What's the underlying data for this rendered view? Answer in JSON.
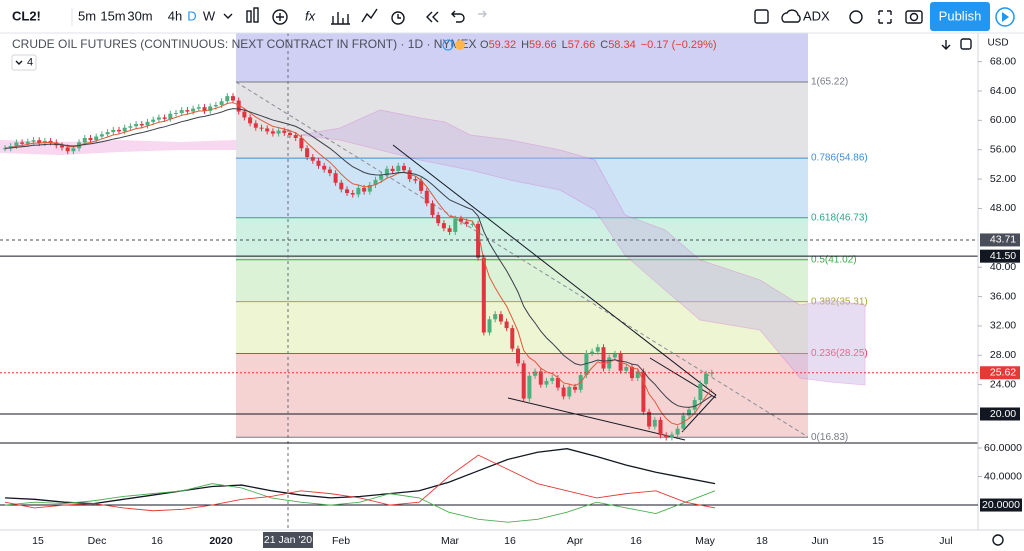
{
  "toolbar": {
    "symbol": "CL2!",
    "intervals": [
      "5m",
      "15m",
      "30m",
      "4h",
      "D",
      "W"
    ],
    "indicator": "ADX",
    "publish": "Publish"
  },
  "legend": {
    "title": "CRUDE OIL FUTURES (CONTINUOUS: NEXT CONTRACT IN FRONT) · 1D · NYMEX",
    "ohlc": [
      {
        "label": "O",
        "value": 59.32
      },
      {
        "label": "H",
        "value": 59.66
      },
      {
        "label": "L",
        "value": 57.66
      },
      {
        "label": "C",
        "value": 58.34
      }
    ],
    "change": "−0.17 (−0.29%)",
    "indicator_count": "4"
  },
  "currency": "USD",
  "price_axis": {
    "range": [
      16.05,
      71.9
    ],
    "ticks": [
      {
        "value": 68,
        "label": "68.00"
      },
      {
        "value": 64,
        "label": "64.00"
      },
      {
        "value": 60,
        "label": "60.00"
      },
      {
        "value": 56,
        "label": "56.00"
      },
      {
        "value": 52,
        "label": "52.00"
      },
      {
        "value": 48,
        "label": "48.00"
      },
      {
        "value": 40,
        "label": "40.00"
      },
      {
        "value": 36,
        "label": "36.00"
      },
      {
        "value": 32,
        "label": "32.00"
      },
      {
        "value": 28,
        "label": "28.00"
      },
      {
        "value": 24,
        "label": "24.00"
      }
    ],
    "markers": [
      {
        "value": 43.71,
        "label": "43.71",
        "color": "#4a4e5a",
        "dash": "3,3"
      },
      {
        "value": 41.5,
        "label": "41.50",
        "color": "#131722",
        "dash": ""
      },
      {
        "value": 20,
        "label": "20.00",
        "color": "#131722",
        "dash": ""
      },
      {
        "value": 25.62,
        "label": "25.62",
        "color": "#e53935",
        "dash": "2,2"
      }
    ]
  },
  "fib_levels": [
    {
      "value": 65.22,
      "label": "1(65.22)",
      "color": "#787b86",
      "fill": "#e3e3e5"
    },
    {
      "value": 54.86,
      "label": "0.786(54.86)",
      "color": "#3f8fd9",
      "fill": "#cde4f6"
    },
    {
      "value": 46.73,
      "label": "0.618(46.73)",
      "color": "#2aa78a",
      "fill": "#cff0e2"
    },
    {
      "value": 41.02,
      "label": "0.5(41.02)",
      "color": "#3ca846",
      "fill": "#dbf2d7"
    },
    {
      "value": 35.31,
      "label": "0.382(35.31)",
      "color": "#a7a82c",
      "fill": "#eef5d3"
    },
    {
      "value": 28.25,
      "label": "0.236(28.25)",
      "color": "#e53945",
      "fill": "#f6d3d3"
    },
    {
      "value": 16.83,
      "label": "0(16.83)",
      "color": "#787b86"
    }
  ],
  "closes": [
    56.2,
    56.5,
    57.0,
    56.8,
    57.1,
    57.3,
    56.9,
    57.2,
    57.0,
    56.6,
    56.3,
    55.8,
    56.2,
    57.0,
    57.6,
    57.3,
    57.8,
    58.1,
    58.4,
    58.7,
    58.5,
    59.0,
    59.2,
    59.5,
    59.3,
    59.8,
    60.1,
    60.4,
    60.2,
    60.9,
    61.0,
    61.4,
    61.2,
    61.6,
    61.8,
    61.3,
    61.9,
    62.1,
    62.6,
    63.3,
    62.7,
    61.2,
    60.4,
    59.6,
    59.0,
    58.9,
    58.5,
    58.2,
    58.6,
    58.3,
    58.0,
    57.6,
    56.2,
    55.0,
    54.5,
    53.8,
    53.3,
    52.8,
    51.5,
    50.6,
    50.1,
    49.9,
    50.8,
    50.3,
    51.2,
    51.9,
    52.5,
    53.4,
    53.1,
    53.8,
    53.2,
    52.0,
    51.8,
    50.4,
    48.7,
    47.1,
    46.0,
    45.3,
    44.8,
    46.6,
    46.2,
    45.9,
    45.9,
    41.3,
    31.1,
    32.9,
    33.6,
    32.6,
    31.7,
    28.9,
    26.9,
    22.1,
    25.2,
    25.8,
    24.0,
    24.5,
    24.9,
    23.6,
    22.4,
    23.7,
    23.3,
    25.3,
    28.3,
    28.5,
    29.1,
    26.2,
    27.7,
    28.2,
    25.9,
    26.4,
    24.9,
    25.8,
    20.3,
    18.3,
    19.2,
    17.1,
    16.8,
    17.2,
    18.0,
    19.8,
    20.6,
    21.9,
    24.1,
    25.5,
    25.62
  ],
  "candle_colors": {
    "up": "#4caf7d",
    "down": "#e0343f"
  },
  "indicator": {
    "range": [
      6,
      63.5
    ],
    "ticks": [
      {
        "value": 60,
        "label": "60.0000"
      },
      {
        "value": 40,
        "label": "40.0000"
      }
    ],
    "level": {
      "value": 20,
      "label": "20.0000"
    },
    "series": [
      {
        "color": "#131722",
        "values": [
          25,
          24,
          22,
          21,
          24,
          27,
          30,
          33,
          34,
          30,
          27,
          25,
          26,
          28,
          30,
          36,
          44,
          52,
          57,
          59.5,
          54,
          48,
          43,
          39,
          35
        ]
      },
      {
        "color": "#4caf50",
        "values": [
          20,
          22,
          21,
          23,
          26,
          28,
          30,
          35,
          32,
          25,
          22,
          20,
          22,
          28,
          25,
          15,
          10,
          8,
          10,
          15,
          22,
          18,
          14,
          22,
          30
        ]
      },
      {
        "color": "#e53935",
        "values": [
          22,
          18,
          20,
          21,
          18,
          16,
          17,
          20,
          24,
          26,
          30,
          28,
          25,
          20,
          22,
          40,
          55,
          45,
          35,
          30,
          25,
          28,
          30,
          22,
          18
        ]
      }
    ]
  },
  "date_axis": {
    "labels": [
      "15",
      "Dec",
      "16",
      "2020",
      "Feb",
      "Mar",
      "16",
      "Apr",
      "16",
      "May",
      "18",
      "Jun",
      "15",
      "Jul"
    ],
    "crosshair": "21 Jan '20"
  }
}
